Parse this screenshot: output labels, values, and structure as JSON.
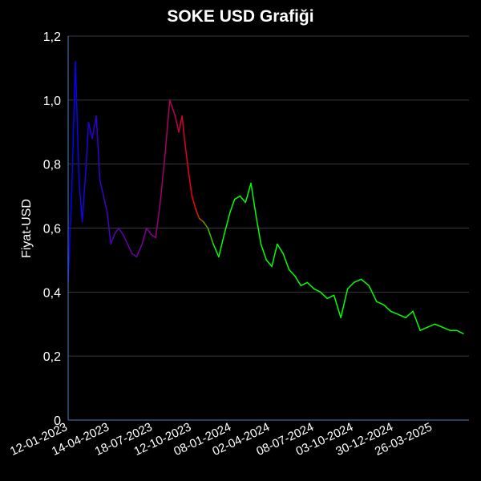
{
  "chart_data": {
    "type": "line",
    "title": "SOKE USD Grafiği",
    "ylabel": "Fiyat-USD",
    "xlabel": "",
    "ylim": [
      0,
      1.2
    ],
    "y_ticks": [
      "0",
      "0,2",
      "0,4",
      "0,6",
      "0,8",
      "1,0",
      "1,2"
    ],
    "x_ticks": [
      "12-01-2023",
      "14-04-2023",
      "18-07-2023",
      "12-10-2023",
      "08-01-2024",
      "02-04-2024",
      "08-07-2024",
      "03-10-2024",
      "30-12-2024",
      "26-03-2025"
    ],
    "grid": true,
    "gradient_colors": [
      "#0000ff",
      "#8a008a",
      "#ff0000",
      "#00ff00"
    ],
    "series": [
      {
        "x": [
          "2023-01-12",
          "2023-01-20",
          "2023-01-28",
          "2023-02-05",
          "2023-02-12",
          "2023-02-20",
          "2023-02-26",
          "2023-03-06",
          "2023-03-15",
          "2023-03-23",
          "2023-03-31",
          "2023-04-08",
          "2023-04-16",
          "2023-04-24",
          "2023-05-03",
          "2023-05-13",
          "2023-05-23",
          "2023-06-02",
          "2023-06-12",
          "2023-06-24",
          "2023-07-04",
          "2023-07-14",
          "2023-07-24",
          "2023-08-03",
          "2023-08-13",
          "2023-08-24",
          "2023-09-05",
          "2023-09-13",
          "2023-09-20",
          "2023-09-27",
          "2023-10-04",
          "2023-10-12",
          "2023-10-20",
          "2023-10-28",
          "2023-11-06",
          "2023-11-16",
          "2023-11-28",
          "2023-12-10",
          "2023-12-22",
          "2024-01-04",
          "2024-01-14",
          "2024-01-26",
          "2024-02-07",
          "2024-02-19",
          "2024-03-01",
          "2024-03-12",
          "2024-03-24",
          "2024-04-05",
          "2024-04-17",
          "2024-04-30",
          "2024-05-13",
          "2024-05-26",
          "2024-06-08",
          "2024-06-22",
          "2024-07-07",
          "2024-07-21",
          "2024-08-05",
          "2024-08-20",
          "2024-09-04",
          "2024-09-19",
          "2024-10-03",
          "2024-10-19",
          "2024-11-05",
          "2024-11-22",
          "2024-12-08",
          "2024-12-23",
          "2025-01-09",
          "2025-01-25",
          "2025-02-10",
          "2025-02-26",
          "2025-03-14",
          "2025-03-30",
          "2025-04-16",
          "2025-05-03",
          "2025-05-18",
          "2025-06-01"
        ],
        "y": [
          0.43,
          0.72,
          1.12,
          0.75,
          0.62,
          0.78,
          0.93,
          0.88,
          0.95,
          0.75,
          0.7,
          0.65,
          0.55,
          0.58,
          0.6,
          0.58,
          0.55,
          0.52,
          0.51,
          0.55,
          0.6,
          0.58,
          0.57,
          0.68,
          0.82,
          1.0,
          0.95,
          0.9,
          0.95,
          0.86,
          0.78,
          0.7,
          0.66,
          0.63,
          0.62,
          0.6,
          0.55,
          0.51,
          0.58,
          0.65,
          0.69,
          0.7,
          0.68,
          0.74,
          0.64,
          0.55,
          0.5,
          0.48,
          0.55,
          0.52,
          0.47,
          0.45,
          0.42,
          0.43,
          0.41,
          0.4,
          0.38,
          0.39,
          0.32,
          0.41,
          0.43,
          0.44,
          0.42,
          0.37,
          0.36,
          0.34,
          0.33,
          0.32,
          0.34,
          0.28,
          0.29,
          0.3,
          0.29,
          0.28,
          0.28,
          0.27
        ]
      }
    ]
  }
}
